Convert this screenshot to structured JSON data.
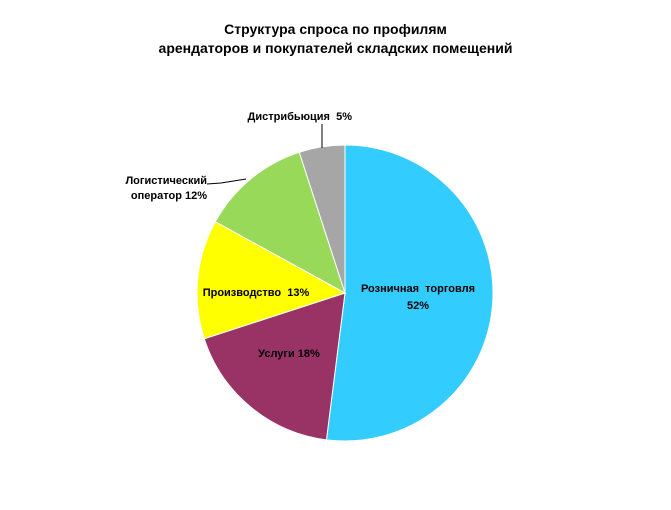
{
  "chart_data": {
    "type": "pie",
    "title_lines": [
      "Структура спроса по профилям",
      "арендаторов и покупателей складских помещений"
    ],
    "slices": [
      {
        "label": "Розничная  торговля",
        "label_lines": [
          "Розничная  торговля",
          "52%"
        ],
        "value": 52,
        "color": "#33CCFF"
      },
      {
        "label": "Услуги",
        "label_lines": [
          "Услуги 18%"
        ],
        "value": 18,
        "color": "#993366"
      },
      {
        "label": "Производство",
        "label_lines": [
          "Производство  13%"
        ],
        "value": 13,
        "color": "#FFFF00"
      },
      {
        "label": "Логистический оператор",
        "label_lines": [
          "Логистический",
          "оператор 12%"
        ],
        "value": 12,
        "color": "#99D95A"
      },
      {
        "label": "Дистрибьюция",
        "label_lines": [
          "Дистрибьюция  5%"
        ],
        "value": 5,
        "color": "#A6A6A6"
      }
    ],
    "start_angle_deg": 0,
    "direction": "clockwise"
  }
}
